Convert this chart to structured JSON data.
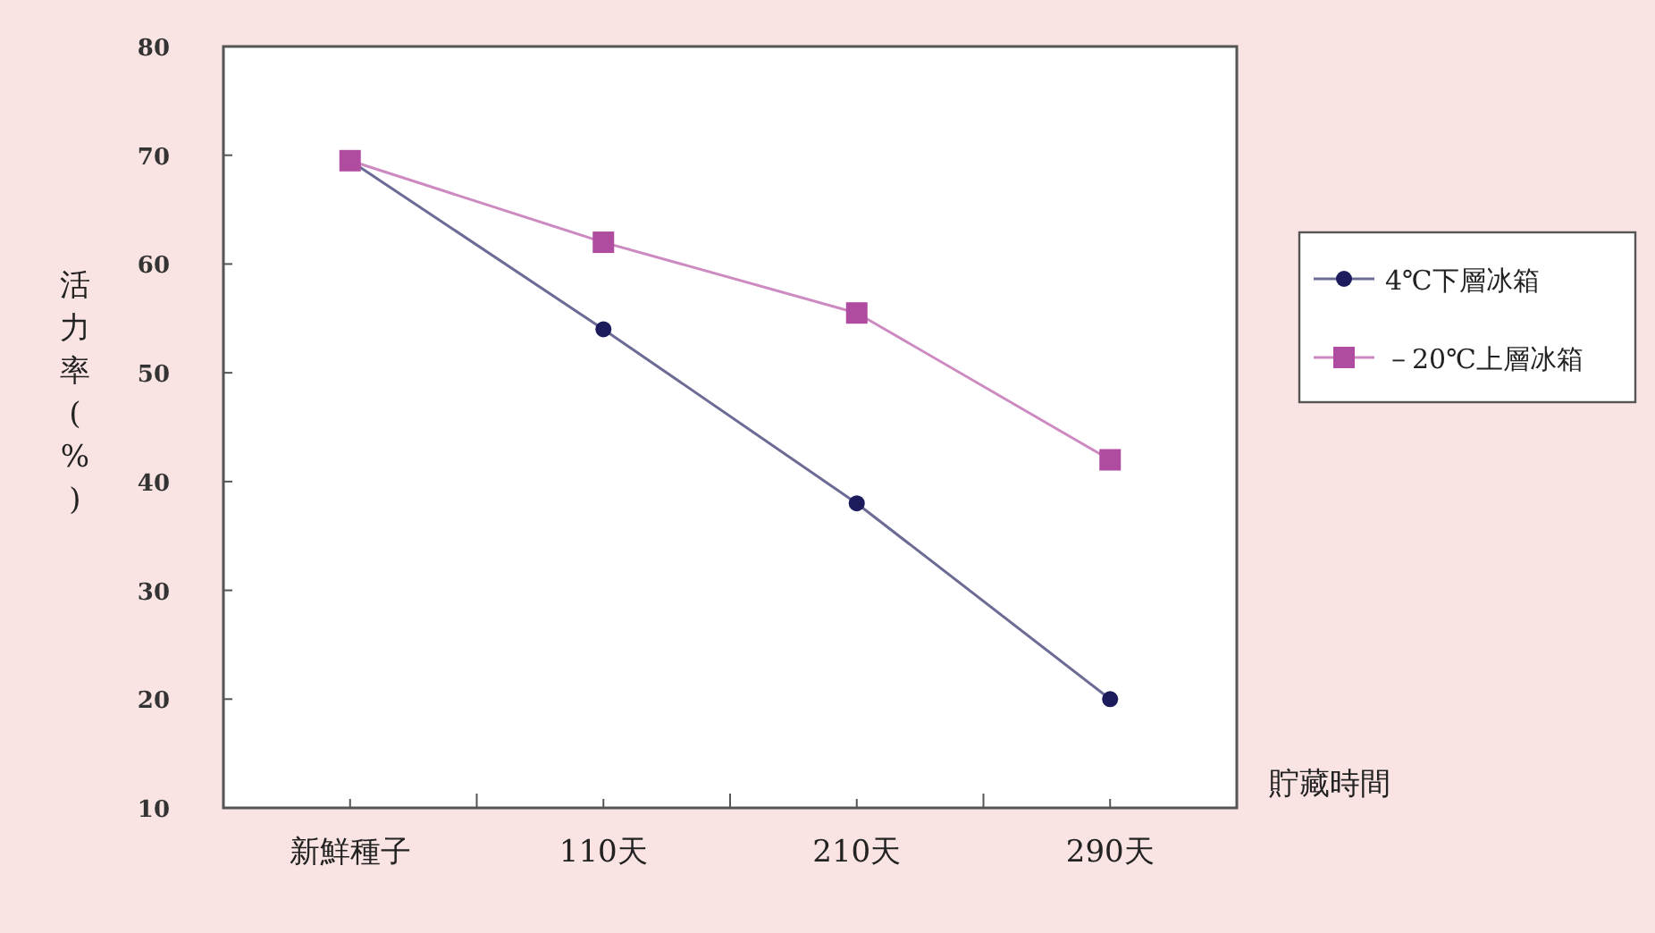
{
  "chart_data": {
    "type": "line",
    "xlabel": "貯藏時間",
    "ylabel": "活力率(%)",
    "categories": [
      "新鮮種子",
      "110天",
      "210天",
      "290天"
    ],
    "series": [
      {
        "name": "4℃下層冰箱",
        "color": "#1c1c5c",
        "marker": "circle",
        "values": [
          69.5,
          54,
          38,
          20
        ]
      },
      {
        "name": "－20℃上層冰箱",
        "color": "#b04ca0",
        "marker": "square",
        "values": [
          69.5,
          62,
          55.5,
          42
        ]
      }
    ],
    "ylim": [
      10,
      80
    ],
    "yticks": [
      10,
      20,
      30,
      40,
      50,
      60,
      70,
      80
    ],
    "grid": false,
    "legend": "right"
  }
}
